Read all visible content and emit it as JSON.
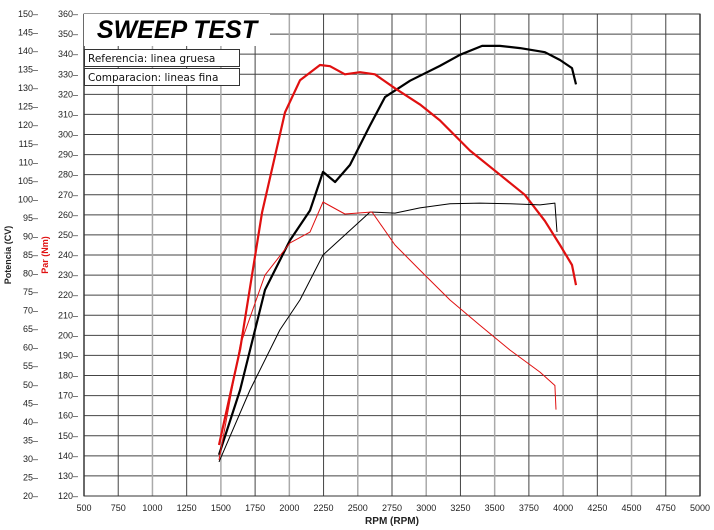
{
  "chart_data": {
    "type": "line",
    "title": "SWEEP TEST",
    "xlabel": "RPM (RPM)",
    "ylabel_left_outer": "Potencia (CV)",
    "ylabel_left_inner": "Par (Nm)",
    "xlim": [
      500,
      5000
    ],
    "ylim_power": [
      20,
      150
    ],
    "ylim_torque": [
      120,
      360
    ],
    "x_ticks": [
      500,
      750,
      1000,
      1250,
      1500,
      1750,
      2000,
      2250,
      2500,
      2750,
      3000,
      3250,
      3500,
      3750,
      4000,
      4250,
      4500,
      4750,
      5000
    ],
    "power_ticks": [
      20,
      25,
      30,
      35,
      40,
      45,
      50,
      55,
      60,
      65,
      70,
      75,
      80,
      85,
      90,
      95,
      100,
      105,
      110,
      115,
      120,
      125,
      130,
      135,
      140,
      145,
      150
    ],
    "torque_ticks": [
      120,
      130,
      140,
      150,
      160,
      170,
      180,
      190,
      200,
      210,
      220,
      230,
      240,
      250,
      260,
      270,
      280,
      290,
      300,
      310,
      320,
      330,
      340,
      350,
      360
    ],
    "grid": true,
    "legend": [
      "Referencia: linea gruesa",
      "Comparacion: lineas fina"
    ],
    "legend_placement": "top-left",
    "series": [
      {
        "name": "Potencia referencia",
        "axis": "power",
        "color": "#000000",
        "width": "thick",
        "x": [
          1486,
          1640,
          1822,
          2005,
          2151,
          2246,
          2334,
          2443,
          2590,
          2699,
          2882,
          3100,
          3247,
          3408,
          3538,
          3685,
          3867,
          3977,
          4065,
          4094
        ],
        "y": [
          31.1,
          48.6,
          75.6,
          89,
          97,
          107.4,
          104.7,
          109.3,
          120,
          127.6,
          132,
          136,
          139,
          141.4,
          141.4,
          140.8,
          139.7,
          137.6,
          135.4,
          131
        ]
      },
      {
        "name": "Par referencia",
        "axis": "torque",
        "color": "#e01010",
        "width": "thick",
        "x": [
          1486,
          1640,
          1800,
          1968,
          2078,
          2224,
          2297,
          2406,
          2516,
          2625,
          2772,
          2954,
          3100,
          3320,
          3538,
          3720,
          3867,
          3977,
          4065,
          4094
        ],
        "y": [
          145.4,
          193,
          261,
          311,
          327,
          334.6,
          334,
          330,
          331,
          330,
          323,
          315,
          307,
          292,
          280,
          270,
          257,
          245,
          235,
          225
        ]
      },
      {
        "name": "Potencia comparacion",
        "axis": "power",
        "color": "#000000",
        "width": "thin",
        "x": [
          1486,
          1713,
          1931,
          2078,
          2246,
          2406,
          2590,
          2772,
          2954,
          3174,
          3392,
          3611,
          3831,
          3940,
          3955
        ],
        "y": [
          29.2,
          48.6,
          64.8,
          72.9,
          85,
          90.4,
          96.6,
          96.3,
          97.7,
          98.8,
          99,
          98.8,
          98.5,
          99,
          91.2
        ]
      },
      {
        "name": "Par comparacion",
        "axis": "torque",
        "color": "#e01010",
        "width": "thin",
        "x": [
          1486,
          1640,
          1822,
          2005,
          2151,
          2246,
          2406,
          2604,
          2772,
          2954,
          3174,
          3392,
          3611,
          3831,
          3940,
          3948
        ],
        "y": [
          138,
          195,
          230,
          246,
          251.4,
          266.4,
          260.4,
          261.4,
          245,
          232.5,
          217.6,
          205,
          192.7,
          181.7,
          175,
          163
        ]
      }
    ]
  }
}
